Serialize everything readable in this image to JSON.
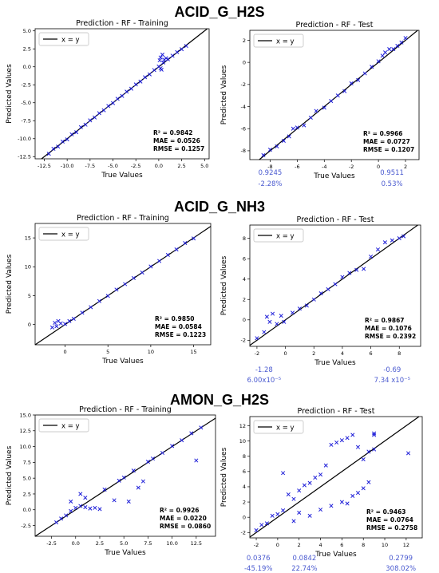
{
  "colors": {
    "marker": "#1f1fd8",
    "line": "#000000",
    "annot": "#4a5ad0"
  },
  "sections": [
    {
      "title": "ACID_G_H2S"
    },
    {
      "title": "ACID_G_NH3"
    },
    {
      "title": "AMON_G_H2S"
    }
  ],
  "chart_data": [
    {
      "type": "scatter",
      "section": 0,
      "panel": "left",
      "title": "Prediction - RF - Training",
      "xlabel": "True Values",
      "ylabel": "Predicted Values",
      "xlim": [
        -13.5,
        5.5
      ],
      "ylim": [
        -12.8,
        5.3
      ],
      "xticks": [
        -12.5,
        -10.0,
        -7.5,
        -5.0,
        -2.5,
        0.0,
        2.5,
        5.0
      ],
      "yticks": [
        -12.5,
        -10.0,
        -7.5,
        -5.0,
        -2.5,
        0.0,
        2.5,
        5.0
      ],
      "legend": "x = y",
      "legend_position": "top-left",
      "stats": [
        "R² = 0.9842",
        "MAE = 0.0526",
        "RMSE = 0.1257"
      ],
      "points": [
        [
          -12,
          -12.1
        ],
        [
          -11.5,
          -11.4
        ],
        [
          -11,
          -11.1
        ],
        [
          -10.5,
          -10.4
        ],
        [
          -10,
          -10.1
        ],
        [
          -9.5,
          -9.4
        ],
        [
          -9,
          -9.1
        ],
        [
          -8.5,
          -8.4
        ],
        [
          -8,
          -8.05
        ],
        [
          -7.5,
          -7.45
        ],
        [
          -7,
          -7.05
        ],
        [
          -6.5,
          -6.45
        ],
        [
          -6,
          -6.05
        ],
        [
          -5.5,
          -5.45
        ],
        [
          -5,
          -5.05
        ],
        [
          -4.5,
          -4.45
        ],
        [
          -4,
          -4.05
        ],
        [
          -3.5,
          -3.45
        ],
        [
          -3,
          -3.05
        ],
        [
          -2.5,
          -2.45
        ],
        [
          -2,
          -2.05
        ],
        [
          -1.5,
          -1.45
        ],
        [
          -1,
          -1.05
        ],
        [
          -0.5,
          -0.45
        ],
        [
          0,
          0.05
        ],
        [
          0.2,
          1.3
        ],
        [
          0.1,
          0.9
        ],
        [
          0.3,
          -0.4
        ],
        [
          0.4,
          1.7
        ],
        [
          0.2,
          -0.2
        ],
        [
          0.5,
          0.6
        ],
        [
          0.6,
          1.0
        ],
        [
          0.8,
          1.2
        ],
        [
          1,
          1.05
        ],
        [
          1.5,
          1.55
        ],
        [
          2,
          2.05
        ],
        [
          2.5,
          2.45
        ],
        [
          3,
          2.9
        ]
      ],
      "annotations": []
    },
    {
      "type": "scatter",
      "section": 0,
      "panel": "right",
      "title": "Prediction - RF - Test",
      "xlabel": "True Values",
      "ylabel": "Predicted Values",
      "xlim": [
        -9.5,
        3.0
      ],
      "ylim": [
        -8.8,
        2.9
      ],
      "xticks": [
        -8,
        -6,
        -4,
        -2,
        0,
        2
      ],
      "yticks": [
        -8,
        -6,
        -4,
        -2,
        0,
        2
      ],
      "legend": "x = y",
      "legend_position": "top-left",
      "stats": [
        "R² = 0.9966",
        "MAE = 0.0727",
        "RMSE = 0.1207"
      ],
      "points": [
        [
          -8.5,
          -8.4
        ],
        [
          -8,
          -7.9
        ],
        [
          -7.5,
          -7.6
        ],
        [
          -7,
          -7.1
        ],
        [
          -6.6,
          -6.7
        ],
        [
          -6.3,
          -6.0
        ],
        [
          -6,
          -5.9
        ],
        [
          -5.5,
          -5.7
        ],
        [
          -5,
          -5.0
        ],
        [
          -4.6,
          -4.4
        ],
        [
          -4,
          -4.1
        ],
        [
          -3.5,
          -3.5
        ],
        [
          -3,
          -3.0
        ],
        [
          -2.5,
          -2.6
        ],
        [
          -2,
          -1.9
        ],
        [
          -1.5,
          -1.6
        ],
        [
          -1,
          -1.0
        ],
        [
          -0.5,
          -0.4
        ],
        [
          0,
          0.1
        ],
        [
          0.3,
          0.6
        ],
        [
          0.5,
          0.9
        ],
        [
          0.8,
          1.2
        ],
        [
          1.1,
          1.2
        ],
        [
          1.4,
          1.5
        ],
        [
          1.7,
          1.8
        ],
        [
          2,
          2.2
        ]
      ],
      "annotations": [
        {
          "x": -8,
          "values": [
            "0.9245",
            "-2.28%"
          ]
        },
        {
          "x": 1,
          "values": [
            "0.9511",
            "0.53%"
          ]
        }
      ]
    },
    {
      "type": "scatter",
      "section": 1,
      "panel": "left",
      "title": "Prediction - RF - Training",
      "xlabel": "True Values",
      "ylabel": "Predicted Values",
      "xlim": [
        -3.5,
        17
      ],
      "ylim": [
        -3.5,
        17.5
      ],
      "xticks": [
        0,
        5,
        10,
        15
      ],
      "yticks": [
        0,
        5,
        10,
        15
      ],
      "legend": "x = y",
      "legend_position": "top-left",
      "stats": [
        "R² = 0.9850",
        "MAE = 0.0584",
        "RMSE = 0.1223"
      ],
      "points": [
        [
          -1.5,
          -0.5
        ],
        [
          -1.2,
          0.3
        ],
        [
          -1,
          -0.3
        ],
        [
          -0.8,
          0.6
        ],
        [
          -0.5,
          0.2
        ],
        [
          0,
          0.1
        ],
        [
          0.5,
          0.6
        ],
        [
          1,
          1.0
        ],
        [
          2,
          2.05
        ],
        [
          3,
          3.0
        ],
        [
          4,
          4.05
        ],
        [
          5,
          4.95
        ],
        [
          6,
          6.05
        ],
        [
          7,
          7.0
        ],
        [
          8,
          8.05
        ],
        [
          9,
          9.0
        ],
        [
          10,
          10.05
        ],
        [
          11,
          11.0
        ],
        [
          12,
          12.05
        ],
        [
          13,
          13.0
        ],
        [
          14,
          14.1
        ],
        [
          15,
          14.9
        ]
      ],
      "annotations": []
    },
    {
      "type": "scatter",
      "section": 1,
      "panel": "right",
      "title": "Prediction - RF - Test",
      "xlabel": "True Values",
      "ylabel": "Predicted Values",
      "xlim": [
        -2.5,
        9.5
      ],
      "ylim": [
        -2.6,
        9.3
      ],
      "xticks": [
        -2,
        0,
        2,
        4,
        6,
        8
      ],
      "yticks": [
        -2,
        0,
        2,
        4,
        6,
        8
      ],
      "legend": "x = y",
      "legend_position": "top-left",
      "stats": [
        "R² = 0.9867",
        "MAE = 0.1076",
        "RMSE = 0.2392"
      ],
      "points": [
        [
          -2,
          -1.8
        ],
        [
          -1.5,
          -1.2
        ],
        [
          -1.3,
          0.3
        ],
        [
          -1.1,
          -0.2
        ],
        [
          -0.9,
          0.6
        ],
        [
          -0.6,
          -0.4
        ],
        [
          -0.3,
          0.4
        ],
        [
          -0.1,
          -0.2
        ],
        [
          0.5,
          0.7
        ],
        [
          1,
          1.1
        ],
        [
          1.5,
          1.4
        ],
        [
          2,
          2.0
        ],
        [
          2.5,
          2.6
        ],
        [
          3,
          3.0
        ],
        [
          3.5,
          3.5
        ],
        [
          4,
          4.2
        ],
        [
          4.5,
          4.6
        ],
        [
          5,
          4.9
        ],
        [
          5.5,
          5.0
        ],
        [
          6,
          6.2
        ],
        [
          6.5,
          6.9
        ],
        [
          7,
          7.6
        ],
        [
          7.5,
          7.8
        ],
        [
          8,
          8.0
        ],
        [
          8.3,
          8.2
        ]
      ],
      "annotations": [
        {
          "x": -1.5,
          "values": [
            "-1.28",
            "6.00x10⁻⁵"
          ]
        },
        {
          "x": 7.5,
          "values": [
            "-0.69",
            "7.34 x10⁻⁵"
          ]
        }
      ]
    },
    {
      "type": "scatter",
      "section": 2,
      "panel": "left",
      "title": "Prediction - RF - Training",
      "xlabel": "True Values",
      "ylabel": "Predicted Values",
      "xlim": [
        -4.2,
        14.5
      ],
      "ylim": [
        -4.2,
        15.0
      ],
      "xticks": [
        -2.5,
        0.0,
        2.5,
        5.0,
        7.5,
        10.0,
        12.5
      ],
      "yticks": [
        -2.5,
        0.0,
        2.5,
        5.0,
        7.5,
        10.0,
        12.5,
        15.0
      ],
      "legend": "x = y",
      "legend_position": "top-left",
      "stats": [
        "R² = 0.9926",
        "MAE = 0.0220",
        "RMSE = 0.0860"
      ],
      "points": [
        [
          -2,
          -2.0
        ],
        [
          -1.5,
          -1.4
        ],
        [
          -1,
          -0.9
        ],
        [
          -0.5,
          -0.2
        ],
        [
          0,
          0.3
        ],
        [
          0.5,
          0.6
        ],
        [
          1,
          0.4
        ],
        [
          1.5,
          0.2
        ],
        [
          2,
          0.3
        ],
        [
          2.5,
          0.1
        ],
        [
          3,
          3.2
        ],
        [
          4,
          1.5
        ],
        [
          4.5,
          4.6
        ],
        [
          5,
          5.1
        ],
        [
          5.5,
          1.3
        ],
        [
          6,
          6.2
        ],
        [
          6.5,
          3.5
        ],
        [
          7,
          4.5
        ],
        [
          7.5,
          7.6
        ],
        [
          8,
          8.1
        ],
        [
          9,
          9.0
        ],
        [
          10,
          10.1
        ],
        [
          11,
          11.0
        ],
        [
          12,
          12.1
        ],
        [
          12.5,
          7.8
        ],
        [
          13,
          13.0
        ],
        [
          0.5,
          2.5
        ],
        [
          1,
          1.9
        ],
        [
          -0.5,
          1.3
        ]
      ],
      "annotations": []
    },
    {
      "type": "scatter",
      "section": 2,
      "panel": "right",
      "title": "Prediction - RF - Test",
      "xlabel": "True Values",
      "ylabel": "Predicted Values",
      "xlim": [
        -2.6,
        13.5
      ],
      "ylim": [
        -2.7,
        13.2
      ],
      "xticks": [
        -2,
        0,
        2,
        4,
        6,
        8,
        10,
        12
      ],
      "yticks": [
        -2,
        0,
        2,
        4,
        6,
        8,
        10,
        12
      ],
      "legend": "x = y",
      "legend_position": "top-left",
      "stats": [
        "R² = 0.9463",
        "MAE = 0.0764",
        "RMSE = 0.2758"
      ],
      "points": [
        [
          -2,
          -1.7
        ],
        [
          -1.5,
          -1.0
        ],
        [
          -1,
          -0.8
        ],
        [
          -0.5,
          0.2
        ],
        [
          0,
          0.4
        ],
        [
          0.5,
          0.9
        ],
        [
          1,
          3.0
        ],
        [
          1.5,
          2.4
        ],
        [
          2,
          3.5
        ],
        [
          2.5,
          4.2
        ],
        [
          3,
          4.5
        ],
        [
          3.5,
          5.2
        ],
        [
          4,
          5.6
        ],
        [
          4.5,
          6.8
        ],
        [
          5,
          9.5
        ],
        [
          5.5,
          9.8
        ],
        [
          6,
          10.1
        ],
        [
          6.5,
          10.4
        ],
        [
          7,
          10.8
        ],
        [
          7.5,
          9.2
        ],
        [
          8,
          7.6
        ],
        [
          8.5,
          8.6
        ],
        [
          9,
          10.8
        ],
        [
          9,
          11.0
        ],
        [
          9,
          8.9
        ],
        [
          4,
          1.0
        ],
        [
          5,
          1.5
        ],
        [
          6,
          2.0
        ],
        [
          7,
          2.8
        ],
        [
          8,
          3.8
        ],
        [
          8.5,
          4.6
        ],
        [
          3,
          0.2
        ],
        [
          2,
          0.6
        ],
        [
          1.5,
          -0.5
        ],
        [
          0.5,
          5.8
        ],
        [
          12.2,
          8.4
        ],
        [
          6.5,
          1.8
        ],
        [
          7.5,
          3.2
        ]
      ],
      "annotations": [
        {
          "x": -1.8,
          "values": [
            "0.0376",
            "-45.19%"
          ]
        },
        {
          "x": 2.5,
          "values": [
            "0.0842",
            "22.74%"
          ]
        },
        {
          "x": 11.5,
          "values": [
            "0.2799",
            "308.02%"
          ]
        }
      ]
    }
  ]
}
